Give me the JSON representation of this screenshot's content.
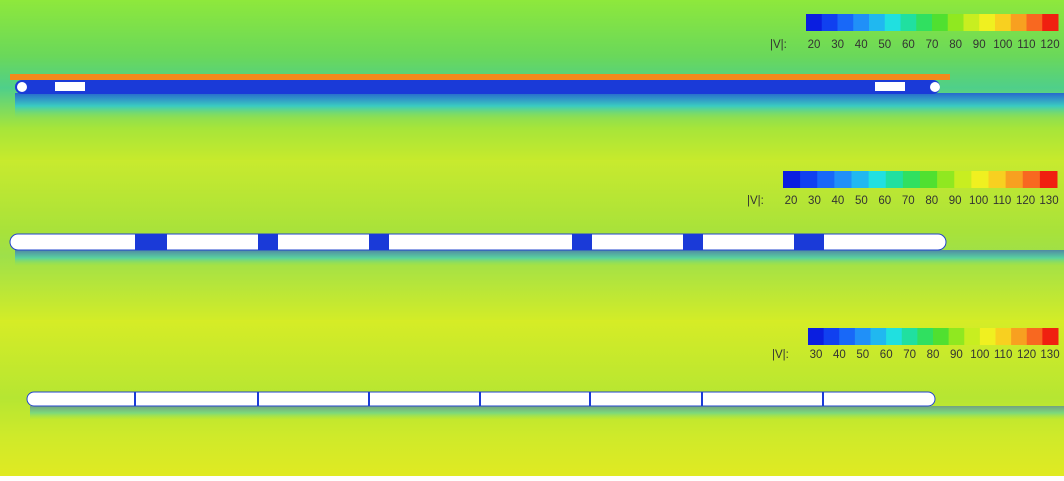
{
  "panels": [
    {
      "colorbar": {
        "label": "|V|:",
        "ticks": [
          20,
          30,
          40,
          50,
          60,
          70,
          80,
          90,
          100,
          110,
          120
        ]
      }
    },
    {
      "colorbar": {
        "label": "|V|:",
        "ticks": [
          20,
          30,
          40,
          50,
          60,
          70,
          80,
          90,
          100,
          110,
          120,
          130
        ]
      }
    },
    {
      "colorbar": {
        "label": "|V|:",
        "ticks": [
          30,
          40,
          50,
          60,
          70,
          80,
          90,
          100,
          110,
          120,
          130
        ]
      }
    }
  ]
}
